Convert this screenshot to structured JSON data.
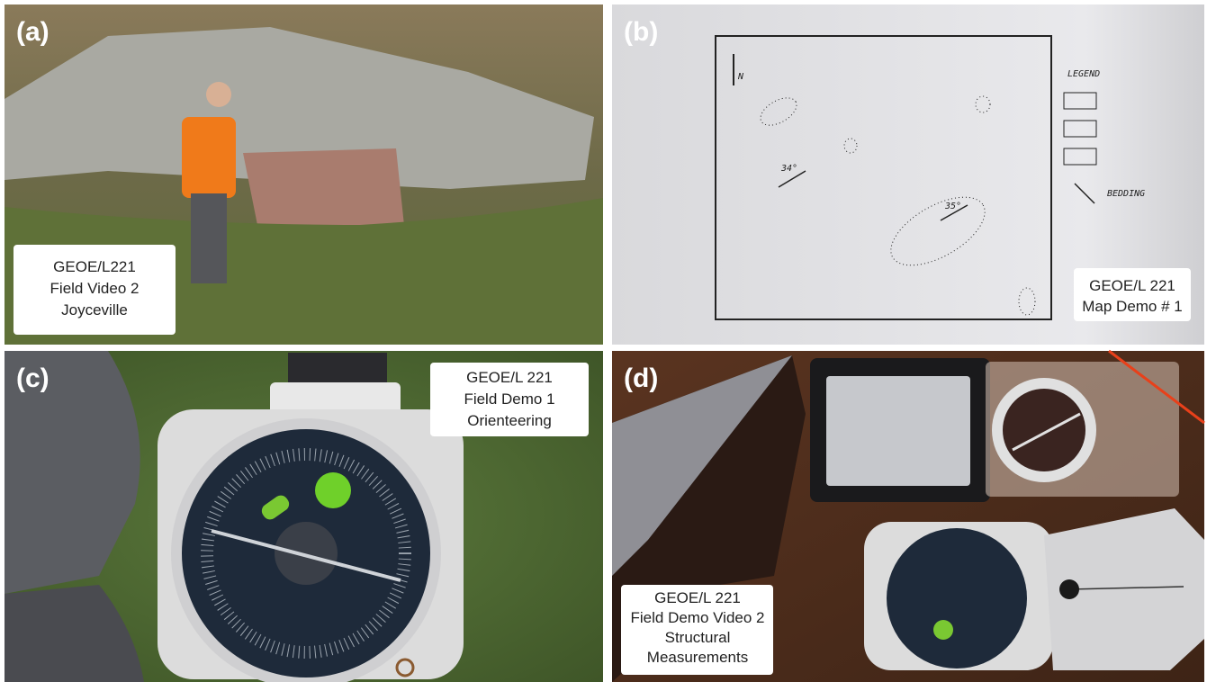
{
  "panels": [
    {
      "label": "(a)",
      "caption": [
        "GEOE/L221",
        "Field Video 2",
        "Joyceville"
      ]
    },
    {
      "label": "(b)",
      "caption": [
        "GEOE/L 221",
        "Map Demo # 1"
      ],
      "map": {
        "north": "N",
        "legend": "LEGEND",
        "bedding": "BEDDING",
        "dip1": "34°",
        "dip2": "35°"
      }
    },
    {
      "label": "(c)",
      "caption": [
        "GEOE/L 221",
        "Field Demo 1",
        "Orienteering"
      ]
    },
    {
      "label": "(d)",
      "caption": [
        "GEOE/L 221",
        "Field Demo Video 2",
        "Structural",
        "Measurements"
      ]
    }
  ]
}
